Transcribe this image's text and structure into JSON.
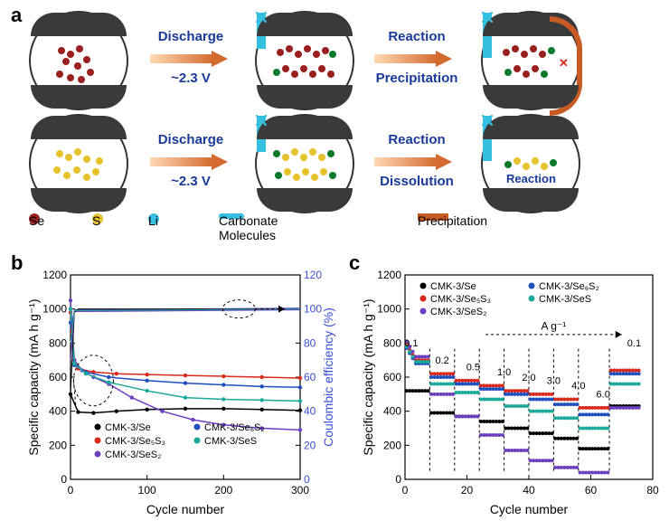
{
  "labels": {
    "a": "a",
    "b": "b",
    "c": "c"
  },
  "panel_a": {
    "row1": {
      "arrows": [
        {
          "top": "Discharge",
          "bottom": "~2.3 V"
        },
        {
          "top": "Reaction",
          "bottom": "Precipitation"
        }
      ],
      "particles": [
        "se-cluster",
        "se-chains-li",
        "se-chains-precip"
      ]
    },
    "row2": {
      "arrows": [
        {
          "top": "Discharge",
          "bottom": "~2.3 V"
        },
        {
          "top": "Reaction",
          "bottom": "Dissolution"
        }
      ],
      "blocked_x": "✕",
      "reaction_in": "Reaction",
      "particles": [
        "s-cluster",
        "s-chains-li",
        "s-chain-single"
      ]
    },
    "legend": {
      "se": "Se",
      "s": "S",
      "li": "Li",
      "li_sup": "+",
      "carb": "Carbonate Molecules",
      "precip": "Precipitation"
    }
  },
  "chart_b": {
    "type": "line+scatter dual-axis",
    "xlabel": "Cycle number",
    "ylabel_left": "Specific capacity (mA h g⁻¹)",
    "ylabel_right": "Coulombic efficiency (%)",
    "xlim": [
      0,
      300
    ],
    "xtick_step": 100,
    "ylim_left": [
      0,
      1200
    ],
    "ytick_left": [
      0,
      200,
      400,
      600,
      800,
      1000,
      1200
    ],
    "ylim_right": [
      0,
      120
    ],
    "ytick_right": [
      0,
      20,
      40,
      60,
      80,
      100,
      120
    ],
    "background_color": "#ffffff",
    "series": [
      {
        "name": "CMK-3/Se",
        "color": "#000000",
        "marker": "circle",
        "data": [
          [
            0,
            500
          ],
          [
            10,
            395
          ],
          [
            30,
            390
          ],
          [
            60,
            400
          ],
          [
            100,
            410
          ],
          [
            150,
            415
          ],
          [
            200,
            415
          ],
          [
            250,
            410
          ],
          [
            300,
            405
          ]
        ],
        "ce": [
          [
            0,
            50
          ],
          [
            5,
            98
          ],
          [
            10,
            100
          ],
          [
            300,
            100
          ]
        ]
      },
      {
        "name": "CMK-3/Se₅S₃",
        "color": "#d9291c",
        "marker": "circle",
        "data": [
          [
            0,
            980
          ],
          [
            5,
            700
          ],
          [
            10,
            650
          ],
          [
            30,
            630
          ],
          [
            60,
            620
          ],
          [
            100,
            615
          ],
          [
            150,
            610
          ],
          [
            200,
            605
          ],
          [
            250,
            600
          ],
          [
            300,
            595
          ]
        ],
        "ce": [
          [
            0,
            85
          ],
          [
            5,
            99
          ],
          [
            300,
            100
          ]
        ]
      },
      {
        "name": "CMK-3/SeS₂",
        "color": "#6d3fbf",
        "marker": "triangle-left",
        "data": [
          [
            0,
            1050
          ],
          [
            5,
            700
          ],
          [
            15,
            640
          ],
          [
            30,
            600
          ],
          [
            50,
            560
          ],
          [
            80,
            480
          ],
          [
            120,
            400
          ],
          [
            160,
            350
          ],
          [
            200,
            320
          ],
          [
            250,
            300
          ],
          [
            300,
            290
          ]
        ],
        "ce": [
          [
            0,
            70
          ],
          [
            5,
            99
          ],
          [
            300,
            100
          ]
        ]
      },
      {
        "name": "CMK-3/Se₆S₂",
        "color": "#1f4fbf",
        "marker": "circle",
        "data": [
          [
            0,
            920
          ],
          [
            5,
            670
          ],
          [
            20,
            630
          ],
          [
            50,
            600
          ],
          [
            100,
            580
          ],
          [
            150,
            565
          ],
          [
            200,
            555
          ],
          [
            250,
            545
          ],
          [
            300,
            540
          ]
        ],
        "ce": [
          [
            0,
            88
          ],
          [
            5,
            99
          ],
          [
            300,
            100
          ]
        ]
      },
      {
        "name": "CMK-3/SeS",
        "color": "#1aa99a",
        "marker": "diamond",
        "data": [
          [
            0,
            1000
          ],
          [
            5,
            680
          ],
          [
            20,
            620
          ],
          [
            50,
            570
          ],
          [
            100,
            520
          ],
          [
            150,
            480
          ],
          [
            200,
            470
          ],
          [
            250,
            465
          ],
          [
            300,
            460
          ]
        ],
        "ce": [
          [
            0,
            80
          ],
          [
            5,
            99
          ],
          [
            300,
            100
          ]
        ]
      }
    ]
  },
  "chart_c": {
    "type": "rate-capability scatter",
    "xlabel": "Cycle number",
    "ylabel_left": "Specific capacity (mA h g⁻¹)",
    "xlim": [
      0,
      80
    ],
    "xtick_step": 20,
    "ylim": [
      0,
      1200
    ],
    "ytick": [
      0,
      200,
      400,
      600,
      800,
      1000,
      1200
    ],
    "rate_unit": "A g⁻¹",
    "rates": [
      {
        "label": "0.1",
        "x": 2
      },
      {
        "label": "0.2",
        "x": 12
      },
      {
        "label": "0.5",
        "x": 22
      },
      {
        "label": "1.0",
        "x": 32
      },
      {
        "label": "2.0",
        "x": 40
      },
      {
        "label": "3.0",
        "x": 48
      },
      {
        "label": "4.0",
        "x": 56
      },
      {
        "label": "6.0",
        "x": 64
      },
      {
        "label": "0.1",
        "x": 74
      }
    ],
    "series": [
      {
        "name": "CMK-3/Se",
        "color": "#000000",
        "steps": [
          520,
          390,
          370,
          340,
          300,
          270,
          240,
          180,
          430
        ]
      },
      {
        "name": "CMK-3/Se₅S₃",
        "color": "#d9291c",
        "steps": [
          700,
          620,
          580,
          550,
          520,
          500,
          470,
          420,
          640
        ]
      },
      {
        "name": "CMK-3/SeS₂",
        "color": "#6d3fbf",
        "steps": [
          720,
          500,
          370,
          260,
          170,
          110,
          70,
          40,
          420
        ]
      },
      {
        "name": "CMK-3/Se₆S₂",
        "color": "#1f4fbf",
        "steps": [
          680,
          600,
          560,
          530,
          500,
          470,
          440,
          380,
          620
        ]
      },
      {
        "name": "CMK-3/SeS",
        "color": "#1aa99a",
        "steps": [
          690,
          560,
          510,
          470,
          430,
          400,
          360,
          300,
          560
        ]
      }
    ]
  }
}
